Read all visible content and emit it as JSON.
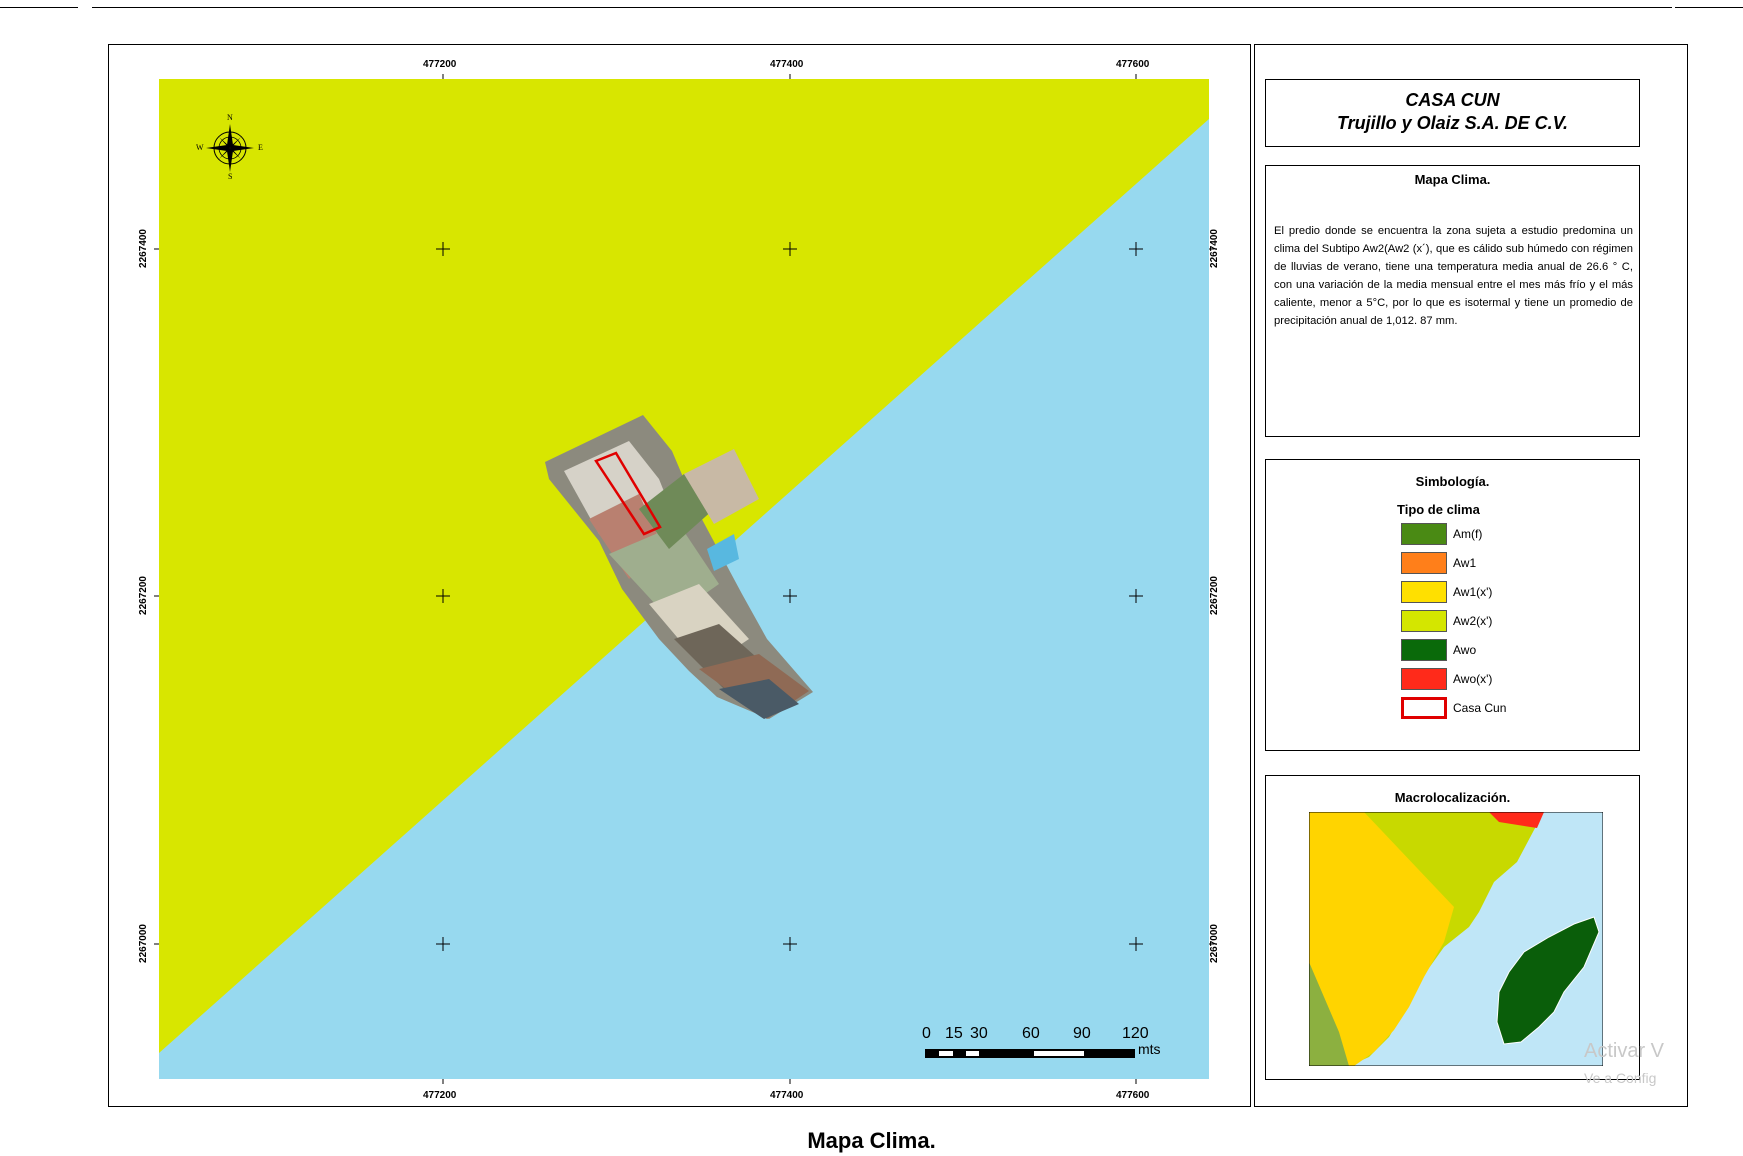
{
  "map": {
    "grid": {
      "x_labels": [
        "477200",
        "477400",
        "477600"
      ],
      "y_labels": [
        "2267400",
        "2267200",
        "2267000"
      ]
    },
    "compass": {
      "n": "N",
      "s": "S",
      "e": "E",
      "w": "W"
    },
    "scale_bar": {
      "labels": [
        "0",
        "15",
        "30",
        "60",
        "90",
        "120"
      ],
      "unit": "mts"
    },
    "zone_colors": {
      "aw2": "#d8e600",
      "sea": "#97d9ef"
    }
  },
  "side": {
    "title": "CASA CUN",
    "subtitle": "Trujillo y Olaiz S.A. DE C.V.",
    "mapa_title": "Mapa Clima.",
    "description": "El predio donde se encuentra la zona sujeta a estudio predomina un clima del Subtipo Aw2(Aw2 (x´), que es cálido sub húmedo con régimen de lluvias de verano, tiene una temperatura media anual de 26.6 ° C, con una variación de la media mensual entre el mes más frío y el más caliente, menor a 5°C, por lo que es isotermal y tiene un promedio de precipitación anual de 1,012. 87 mm.",
    "legend": {
      "title": "Simbología.",
      "subtitle": "Tipo de clima",
      "items": [
        {
          "label": "Am(f)",
          "color": "#4a8a14"
        },
        {
          "label": "Aw1",
          "color": "#ff7f1a"
        },
        {
          "label": "Aw1(x')",
          "color": "#ffe000"
        },
        {
          "label": "Aw2(x')",
          "color": "#d4e600"
        },
        {
          "label": "Awo",
          "color": "#0a6a0a"
        },
        {
          "label": "Awo(x')",
          "color": "#ff2a1a"
        },
        {
          "label": "Casa Cun",
          "color": "#ffffff",
          "border": "#e00000"
        }
      ]
    },
    "macro_title": "Macrolocalización."
  },
  "caption": "Mapa Clima.",
  "watermark": {
    "line1": "Activar V",
    "line2": "Ve a Config"
  }
}
